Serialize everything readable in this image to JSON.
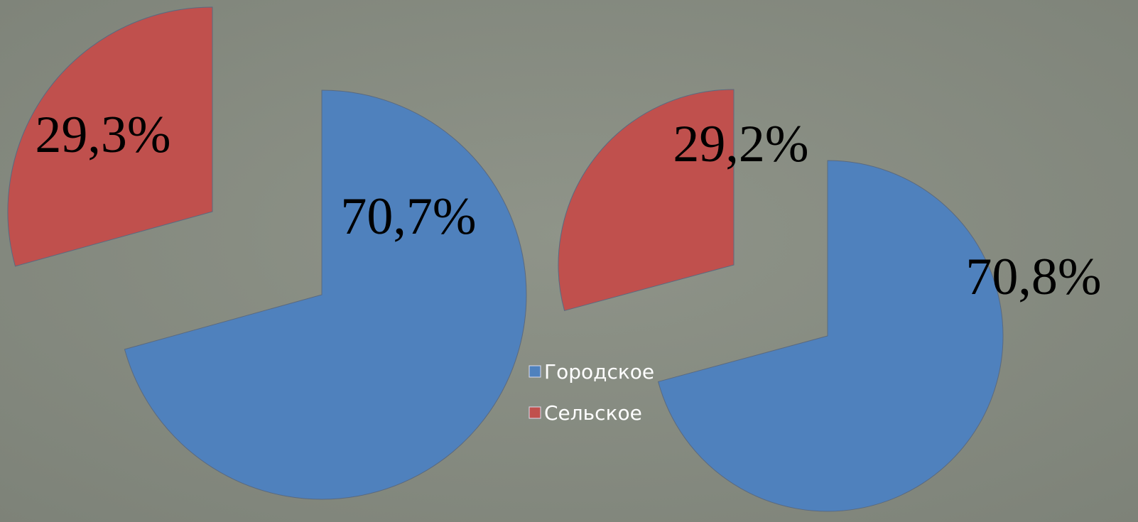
{
  "chart_data": [
    {
      "type": "pie",
      "values": [
        70.7,
        29.3
      ],
      "value_labels": [
        "70,7%",
        "29,3%"
      ]
    },
    {
      "type": "pie",
      "values": [
        70.8,
        29.2
      ],
      "value_labels": [
        "70,8%",
        "29,2%"
      ]
    }
  ],
  "legend": [
    {
      "name": "Городское",
      "color": "#4f81bd"
    },
    {
      "name": "Сельское",
      "color": "#c0504d"
    }
  ]
}
